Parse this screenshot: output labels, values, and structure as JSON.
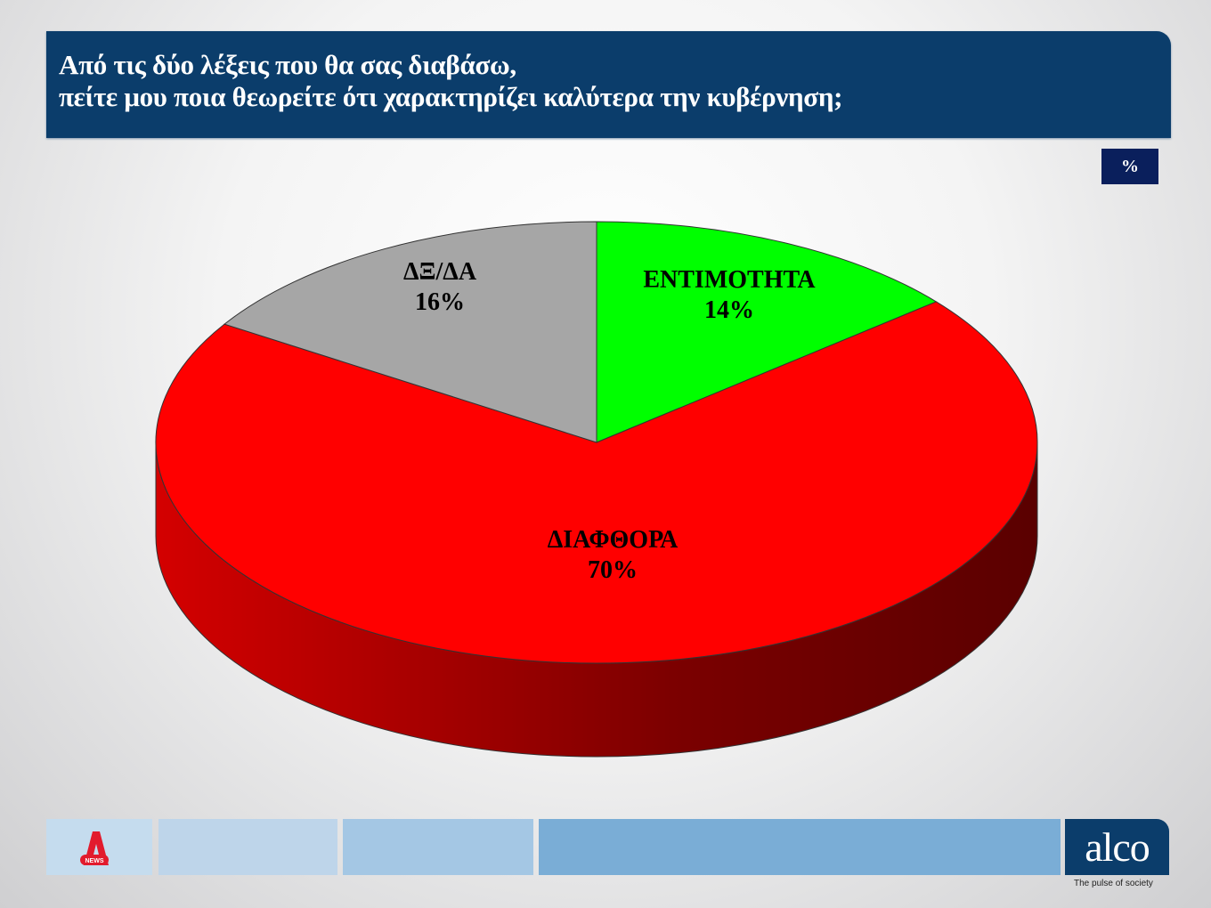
{
  "header": {
    "title_lines": [
      "Από τις δύο λέξεις που θα σας διαβάσω,",
      "πείτε μου ποια θεωρείτε ότι χαρακτηρίζει καλύτερα την κυβέρνηση;"
    ]
  },
  "unit_badge": "%",
  "chart_data": {
    "type": "pie",
    "style": "3d",
    "title": "Από τις δύο λέξεις που θα σας διαβάσω, πείτε μου ποια θεωρείτε ότι χαρακτηρίζει καλύτερα την κυβέρνηση;",
    "unit": "%",
    "slices": [
      {
        "label": "ΕΝΤΙΜΟΤΗΤΑ",
        "value": 14,
        "display": "14%",
        "color": "#00ff00"
      },
      {
        "label": "ΔΙΑΦΘΟΡΑ",
        "value": 70,
        "display": "70%",
        "color": "#ff0000"
      },
      {
        "label": "ΔΞ/ΔΑ",
        "value": 16,
        "display": "16%",
        "color": "#a6a6a6"
      }
    ]
  },
  "footer": {
    "brand": "alco",
    "tagline": "The pulse of society",
    "left_logo": "NEWS",
    "colors": [
      "#c5dcee",
      "#bed5ea",
      "#a4c7e4",
      "#7aadd6"
    ]
  }
}
